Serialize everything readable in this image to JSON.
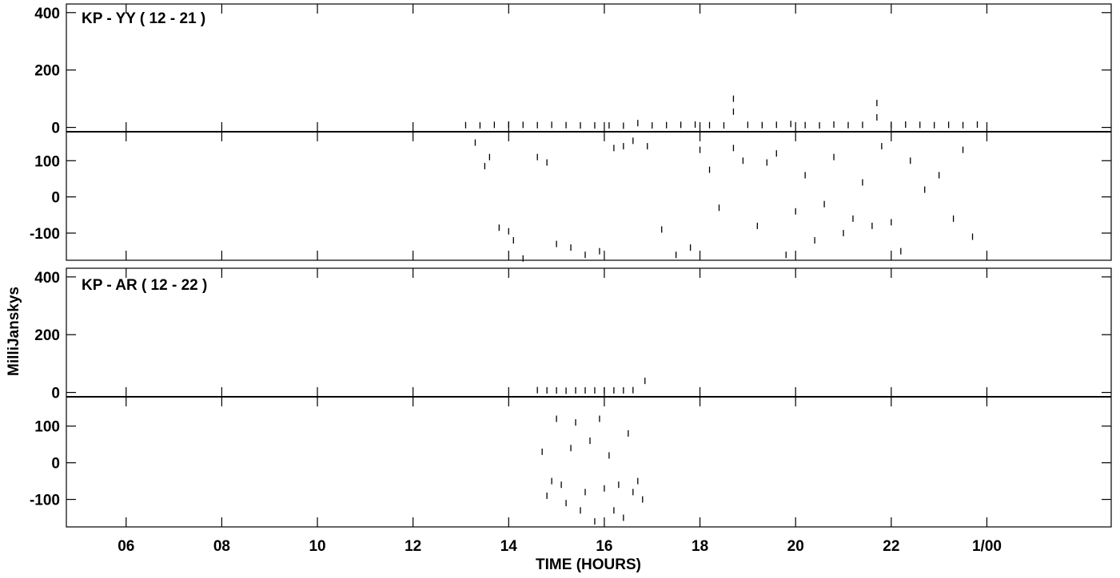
{
  "chart_data": {
    "type": "scatter",
    "xlabel": "TIME (HOURS)",
    "ylabel": "MilliJanskys",
    "xlim": [
      4.75,
      26.6
    ],
    "x_ticks": [
      {
        "value": 6,
        "label": "06"
      },
      {
        "value": 8,
        "label": "08"
      },
      {
        "value": 10,
        "label": "10"
      },
      {
        "value": 12,
        "label": "12"
      },
      {
        "value": 14,
        "label": "14"
      },
      {
        "value": 16,
        "label": "16"
      },
      {
        "value": 18,
        "label": "18"
      },
      {
        "value": 20,
        "label": "20"
      },
      {
        "value": 22,
        "label": "22"
      },
      {
        "value": 24,
        "label": "1/00"
      }
    ],
    "panels": [
      {
        "title": "KP - YY ( 12 - 21 )",
        "amplitude": {
          "ylim": [
            -15,
            430
          ],
          "ticks": [
            {
              "value": 0,
              "label": "0"
            },
            {
              "value": 200,
              "label": "200"
            },
            {
              "value": 400,
              "label": "400"
            }
          ],
          "points": [
            [
              13.1,
              8
            ],
            [
              13.4,
              7
            ],
            [
              13.7,
              9
            ],
            [
              14.0,
              10
            ],
            [
              14.3,
              9
            ],
            [
              14.6,
              8
            ],
            [
              14.9,
              9
            ],
            [
              15.2,
              8
            ],
            [
              15.5,
              7
            ],
            [
              15.8,
              7
            ],
            [
              16.1,
              7
            ],
            [
              16.4,
              6
            ],
            [
              16.7,
              15
            ],
            [
              17.0,
              7
            ],
            [
              17.3,
              8
            ],
            [
              17.6,
              9
            ],
            [
              17.9,
              10
            ],
            [
              18.2,
              8
            ],
            [
              18.5,
              7
            ],
            [
              18.7,
              55
            ],
            [
              18.7,
              100
            ],
            [
              19.0,
              9
            ],
            [
              19.3,
              8
            ],
            [
              19.6,
              9
            ],
            [
              19.9,
              12
            ],
            [
              20.2,
              8
            ],
            [
              20.5,
              7
            ],
            [
              20.8,
              10
            ],
            [
              21.1,
              8
            ],
            [
              21.4,
              9
            ],
            [
              21.7,
              85
            ],
            [
              21.7,
              35
            ],
            [
              22.0,
              9
            ],
            [
              22.3,
              10
            ],
            [
              22.6,
              9
            ],
            [
              22.9,
              8
            ],
            [
              23.2,
              9
            ],
            [
              23.5,
              8
            ],
            [
              23.8,
              10
            ]
          ]
        },
        "phase": {
          "ylim": [
            -175,
            180
          ],
          "ticks": [
            {
              "value": -100,
              "label": "-100"
            },
            {
              "value": 0,
              "label": "0"
            },
            {
              "value": 100,
              "label": "100"
            }
          ],
          "points": [
            [
              13.3,
              150
            ],
            [
              13.5,
              85
            ],
            [
              13.6,
              110
            ],
            [
              13.8,
              -85
            ],
            [
              14.0,
              -95
            ],
            [
              14.1,
              -120
            ],
            [
              14.3,
              -170
            ],
            [
              14.6,
              110
            ],
            [
              14.8,
              95
            ],
            [
              15.0,
              -130
            ],
            [
              15.3,
              -140
            ],
            [
              15.6,
              -160
            ],
            [
              15.9,
              -150
            ],
            [
              16.2,
              135
            ],
            [
              16.4,
              140
            ],
            [
              16.6,
              155
            ],
            [
              16.9,
              140
            ],
            [
              17.2,
              -90
            ],
            [
              17.5,
              -160
            ],
            [
              17.8,
              -140
            ],
            [
              18.0,
              130
            ],
            [
              18.2,
              75
            ],
            [
              18.4,
              -30
            ],
            [
              18.7,
              135
            ],
            [
              18.9,
              100
            ],
            [
              19.2,
              -80
            ],
            [
              19.4,
              95
            ],
            [
              19.6,
              120
            ],
            [
              19.8,
              -160
            ],
            [
              20.0,
              -40
            ],
            [
              20.2,
              60
            ],
            [
              20.4,
              -120
            ],
            [
              20.6,
              -20
            ],
            [
              20.8,
              110
            ],
            [
              21.0,
              -100
            ],
            [
              21.2,
              -60
            ],
            [
              21.4,
              40
            ],
            [
              21.6,
              -80
            ],
            [
              21.8,
              140
            ],
            [
              22.0,
              -70
            ],
            [
              22.2,
              -150
            ],
            [
              22.4,
              100
            ],
            [
              22.7,
              20
            ],
            [
              23.0,
              60
            ],
            [
              23.3,
              -60
            ],
            [
              23.5,
              130
            ],
            [
              23.7,
              -110
            ]
          ]
        }
      },
      {
        "title": "KP - AR ( 12 - 22 )",
        "amplitude": {
          "ylim": [
            -15,
            430
          ],
          "ticks": [
            {
              "value": 0,
              "label": "0"
            },
            {
              "value": 200,
              "label": "200"
            },
            {
              "value": 400,
              "label": "400"
            }
          ],
          "points": [
            [
              14.6,
              8
            ],
            [
              14.8,
              7
            ],
            [
              15.0,
              7
            ],
            [
              15.2,
              6
            ],
            [
              15.4,
              7
            ],
            [
              15.6,
              7
            ],
            [
              15.8,
              7
            ],
            [
              16.0,
              7
            ],
            [
              16.2,
              7
            ],
            [
              16.4,
              7
            ],
            [
              16.6,
              8
            ],
            [
              16.85,
              40
            ]
          ]
        },
        "phase": {
          "ylim": [
            -175,
            180
          ],
          "ticks": [
            {
              "value": -100,
              "label": "-100"
            },
            {
              "value": 0,
              "label": "0"
            },
            {
              "value": 100,
              "label": "100"
            }
          ],
          "points": [
            [
              14.7,
              30
            ],
            [
              14.8,
              -90
            ],
            [
              14.9,
              -50
            ],
            [
              15.0,
              120
            ],
            [
              15.1,
              -60
            ],
            [
              15.2,
              -110
            ],
            [
              15.3,
              40
            ],
            [
              15.4,
              110
            ],
            [
              15.5,
              -130
            ],
            [
              15.6,
              -80
            ],
            [
              15.7,
              60
            ],
            [
              15.8,
              -160
            ],
            [
              15.9,
              120
            ],
            [
              16.0,
              -70
            ],
            [
              16.1,
              20
            ],
            [
              16.2,
              -130
            ],
            [
              16.3,
              -60
            ],
            [
              16.4,
              -150
            ],
            [
              16.5,
              80
            ],
            [
              16.6,
              -80
            ],
            [
              16.7,
              -50
            ],
            [
              16.8,
              -100
            ]
          ]
        }
      }
    ]
  }
}
